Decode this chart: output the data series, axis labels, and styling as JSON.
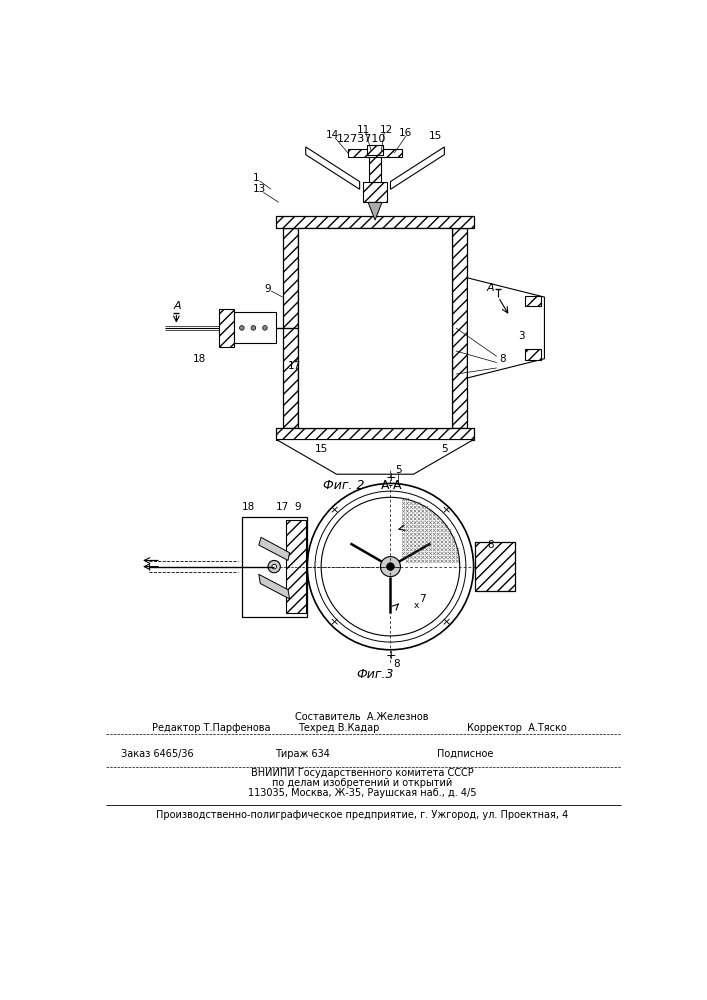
{
  "patent_number": "1273710",
  "fig2_label": "Фиг. 2",
  "fig2_sublabel": "А-А",
  "fig3_label": "Фиг.3",
  "background_color": "#ffffff",
  "footer_line0_center": "Составитель  А.Железнов",
  "footer_line1_left": "Редактор Т.Парфенова",
  "footer_line1_center": "Техред В.Кадар",
  "footer_line1_right": "Корректор  А.Тяско",
  "footer_line2_left": "Заказ 6465/36",
  "footer_line2_center": "Тираж 634",
  "footer_line2_right": "Подписное",
  "footer_line3": "ВНИИПИ Государственного комитета СССР",
  "footer_line4": "по делам изобретений и открытий",
  "footer_line5": "113035, Москва, Ж-35, Раушская наб., д. 4/5",
  "footer_line6": "Производственно-полиграфическое предприятие, г. Ужгород, ул. Проектная, 4"
}
